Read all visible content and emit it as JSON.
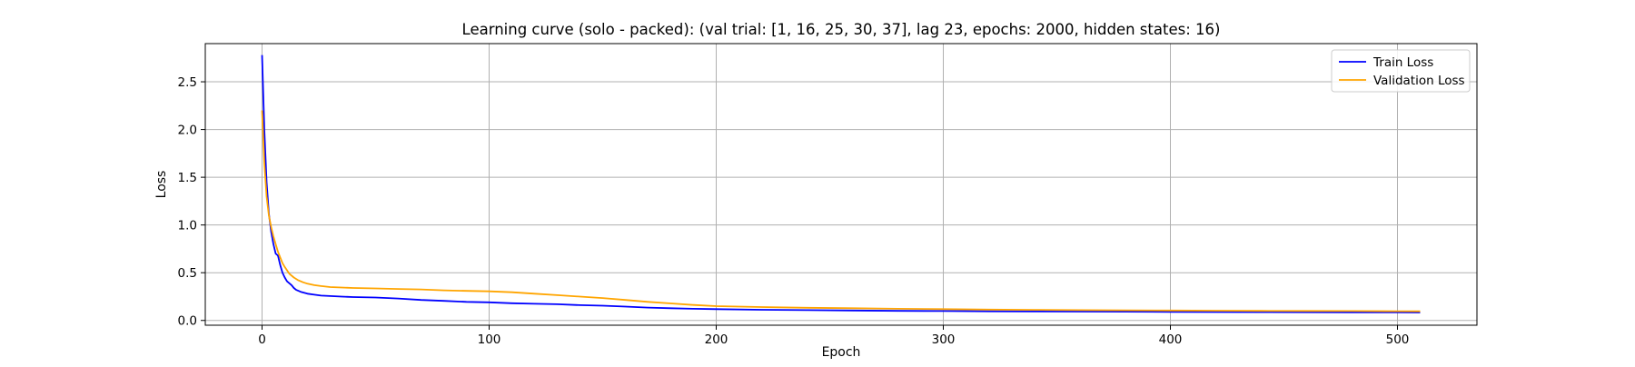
{
  "chart_data": {
    "type": "line",
    "title": "Learning curve (solo - packed): (val trial: [1, 16, 25, 30, 37], lag 23, epochs: 2000, hidden states: 16)",
    "xlabel": "Epoch",
    "ylabel": "Loss",
    "xlim": [
      -25,
      535
    ],
    "ylim": [
      -0.05,
      2.9
    ],
    "xticks": [
      0,
      100,
      200,
      300,
      400,
      500
    ],
    "yticks": [
      0.0,
      0.5,
      1.0,
      1.5,
      2.0,
      2.5
    ],
    "xtick_labels": [
      "0",
      "100",
      "200",
      "300",
      "400",
      "500"
    ],
    "ytick_labels": [
      "0.0",
      "0.5",
      "1.0",
      "1.5",
      "2.0",
      "2.5"
    ],
    "grid": true,
    "legend_position": "upper-right",
    "series": [
      {
        "name": "Train Loss",
        "color": "#0000ff",
        "x": [
          0,
          1,
          2,
          3,
          4,
          5,
          6,
          7,
          8,
          9,
          10,
          11,
          12,
          13,
          14,
          15,
          17,
          20,
          23,
          26,
          30,
          35,
          40,
          50,
          60,
          70,
          80,
          90,
          100,
          110,
          120,
          130,
          140,
          150,
          160,
          170,
          180,
          190,
          200,
          220,
          240,
          260,
          280,
          300,
          320,
          340,
          360,
          380,
          400,
          420,
          440,
          460,
          480,
          500,
          510
        ],
        "y": [
          2.78,
          2.0,
          1.45,
          1.12,
          0.93,
          0.8,
          0.7,
          0.68,
          0.58,
          0.5,
          0.45,
          0.41,
          0.39,
          0.37,
          0.34,
          0.32,
          0.3,
          0.28,
          0.27,
          0.26,
          0.255,
          0.25,
          0.245,
          0.24,
          0.23,
          0.215,
          0.205,
          0.195,
          0.19,
          0.18,
          0.175,
          0.17,
          0.16,
          0.155,
          0.145,
          0.135,
          0.128,
          0.122,
          0.118,
          0.112,
          0.108,
          0.104,
          0.1,
          0.098,
          0.096,
          0.094,
          0.093,
          0.092,
          0.09,
          0.088,
          0.087,
          0.086,
          0.085,
          0.084,
          0.083
        ]
      },
      {
        "name": "Validation Loss",
        "color": "#ffa500",
        "x": [
          0,
          1,
          2,
          3,
          4,
          5,
          6,
          7,
          8,
          9,
          10,
          12,
          14,
          16,
          18,
          20,
          23,
          26,
          30,
          35,
          40,
          50,
          60,
          70,
          80,
          90,
          100,
          110,
          120,
          130,
          140,
          150,
          160,
          170,
          180,
          190,
          200,
          220,
          240,
          260,
          280,
          300,
          320,
          340,
          360,
          380,
          400,
          420,
          440,
          460,
          480,
          500,
          510
        ],
        "y": [
          2.2,
          1.65,
          1.3,
          1.1,
          0.98,
          0.88,
          0.8,
          0.72,
          0.66,
          0.6,
          0.56,
          0.49,
          0.45,
          0.42,
          0.4,
          0.385,
          0.37,
          0.36,
          0.35,
          0.345,
          0.34,
          0.335,
          0.33,
          0.325,
          0.315,
          0.31,
          0.305,
          0.295,
          0.28,
          0.265,
          0.25,
          0.235,
          0.215,
          0.195,
          0.178,
          0.162,
          0.15,
          0.14,
          0.133,
          0.128,
          0.122,
          0.118,
          0.114,
          0.111,
          0.108,
          0.106,
          0.104,
          0.102,
          0.1,
          0.099,
          0.098,
          0.097,
          0.096
        ]
      }
    ]
  }
}
